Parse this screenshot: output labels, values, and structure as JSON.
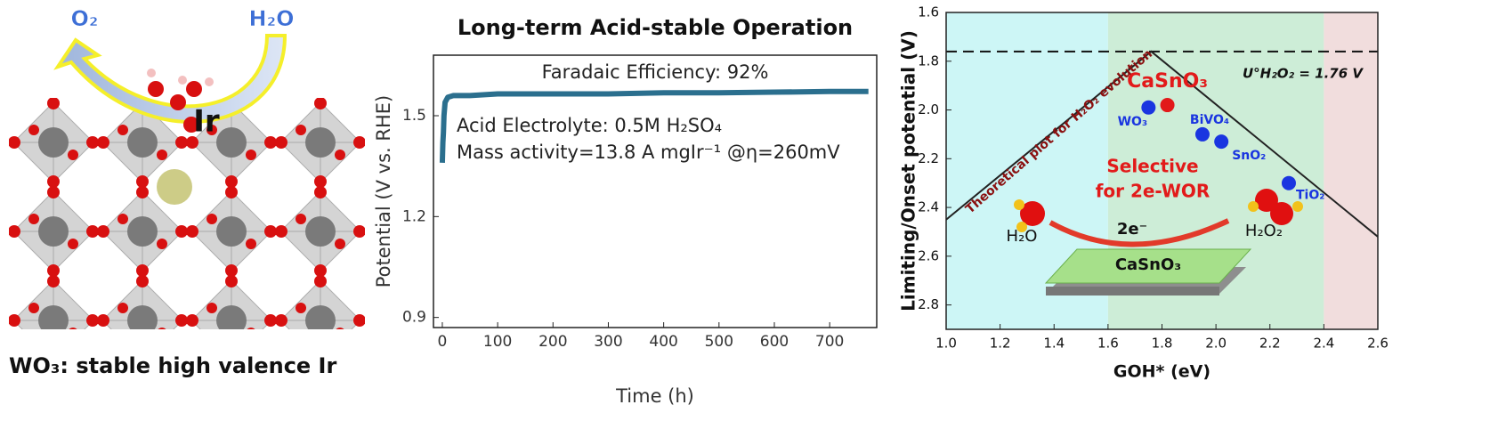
{
  "illustration": {
    "labels": [
      "O₂",
      "H₂O",
      "Ir"
    ],
    "caption": "WO₃: stable high valence Ir"
  },
  "chart_data": [
    {
      "type": "line",
      "title": "Long-term Acid-stable Operation",
      "x_label": "Time (h)",
      "y_label": "Potential (V vs. RHE)",
      "annotations": [
        "Faradaic Efficiency: 92%",
        "Acid Electrolyte: 0.5M H₂SO₄",
        "Mass activity=13.8 A mgIr⁻¹ @η=260mV"
      ],
      "series": [
        {
          "color": "#2b6f8e",
          "x": [
            0,
            1,
            2,
            3,
            5,
            10,
            20,
            50,
            100,
            200,
            300,
            400,
            500,
            600,
            700,
            770
          ],
          "values": [
            1.36,
            1.42,
            1.45,
            1.5,
            1.54,
            1.555,
            1.56,
            1.56,
            1.565,
            1.565,
            1.565,
            1.568,
            1.568,
            1.57,
            1.572,
            1.572
          ]
        }
      ],
      "xlim": [
        -16,
        785
      ],
      "xticks": [
        0,
        100,
        200,
        300,
        400,
        500,
        600,
        700
      ],
      "ylim": [
        0.87,
        1.68
      ],
      "yticks": [
        0.9,
        1.2,
        1.5
      ]
    },
    {
      "type": "scatter",
      "x_label": "GOH* (eV)",
      "y_label": "Limiting/Onset potential (V)",
      "xlim": [
        1.0,
        2.6
      ],
      "xticks": [
        {
          "value": 1.0,
          "label": "1.0"
        },
        1.2,
        1.4,
        1.6,
        1.8,
        {
          "value": 2.0,
          "label": "2.0"
        },
        2.2,
        2.4,
        2.6
      ],
      "ylim": [
        1.6,
        2.9
      ],
      "y_inverted": true,
      "yticks": [
        1.6,
        1.8,
        {
          "value": 2.0,
          "label": "2.0"
        },
        2.2,
        2.4,
        2.6,
        2.8
      ],
      "regions": [
        {
          "from": 1.0,
          "to": 1.6,
          "color": "#cdf6f6"
        },
        {
          "from": 1.6,
          "to": 2.4,
          "color": "#cdedd7"
        },
        {
          "from": 2.4,
          "to": 2.6,
          "color": "#f1dddd"
        }
      ],
      "reference_line": {
        "value": 1.76,
        "label": "U°H₂O₂ = 1.76 V"
      },
      "theory_line": {
        "x": [
          1.0,
          1.76,
          2.6
        ],
        "values": [
          2.45,
          1.76,
          2.52
        ]
      },
      "series": [
        {
          "name": "CaSnO₃",
          "color": "#e21a1a",
          "x": [
            1.82
          ],
          "values": [
            1.98
          ]
        },
        {
          "name": "WO₃",
          "color": "#1a35e0",
          "x": [
            1.75
          ],
          "values": [
            1.99
          ]
        },
        {
          "name": "BiVO₄",
          "color": "#1a35e0",
          "x": [
            1.95
          ],
          "values": [
            2.1
          ]
        },
        {
          "name": "SnO₂",
          "color": "#1a35e0",
          "x": [
            2.02
          ],
          "values": [
            2.13
          ]
        },
        {
          "name": "TiO₂",
          "color": "#1a35e0",
          "x": [
            2.27
          ],
          "values": [
            2.3
          ]
        }
      ],
      "annotations": [
        "Theoretical plot for H₂O₂ evolution",
        "Selective",
        "for 2e-WOR",
        "2e⁻",
        "CaSnO₃",
        "H₂O",
        "H₂O₂"
      ]
    }
  ]
}
